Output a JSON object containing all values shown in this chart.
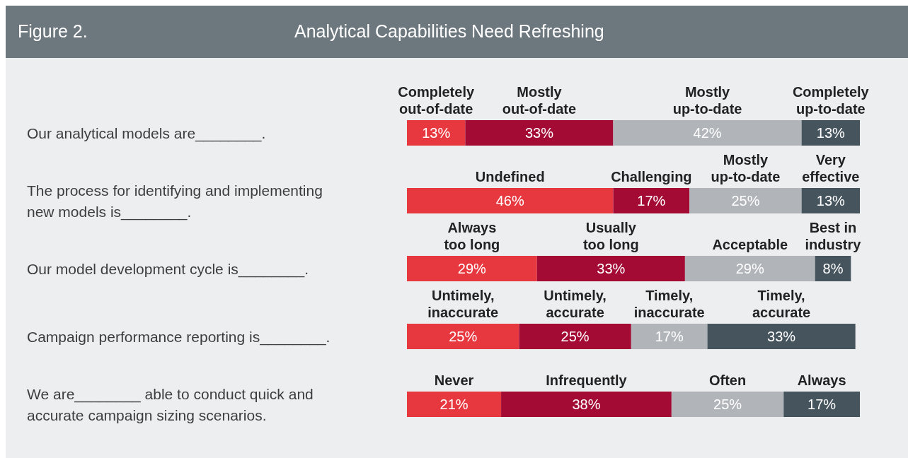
{
  "chart_data": {
    "type": "bar",
    "orientation": "horizontal",
    "stacked": true,
    "title": "Analytical Capabilities Need Refreshing",
    "subtitle": "Figure 2.",
    "categories": [
      "Our analytical models are________.",
      "The process for identifying and implementing new models is________.",
      "Our model development cycle is________.",
      "Campaign performance reporting is________.",
      "We are________ able to conduct quick and accurate campaign sizing scenarios."
    ],
    "series": [
      {
        "color": "#e8383f",
        "values": [
          13,
          46,
          29,
          25,
          21
        ],
        "value_labels": [
          "13%",
          "46%",
          "29%",
          "25%",
          "21%"
        ]
      },
      {
        "color": "#a30b35",
        "values": [
          33,
          17,
          33,
          25,
          38
        ],
        "value_labels": [
          "33%",
          "17%",
          "33%",
          "25%",
          "38%"
        ]
      },
      {
        "color": "#b1b5b9",
        "values": [
          42,
          25,
          29,
          17,
          25
        ],
        "value_labels": [
          "42%",
          "25%",
          "29%",
          "17%",
          "25%"
        ]
      },
      {
        "color": "#46545e",
        "values": [
          13,
          13,
          8,
          33,
          17
        ],
        "value_labels": [
          "13%",
          "13%",
          "8%",
          "33%",
          "17%"
        ]
      }
    ],
    "annotations": [
      "Completely\nout-of-date",
      "Mostly\nout-of-date",
      "Mostly\nup-to-date",
      "Completely\nup-to-date",
      "Undefined",
      "Challenging",
      "Mostly\nup-to-date",
      "Very\neffective",
      "Always\ntoo long",
      "Usually\ntoo long",
      "Acceptable",
      "Best in\nindustry",
      "Untimely,\ninaccurate",
      "Untimely,\naccurate",
      "Timely,\ninaccurate",
      "Timely,\naccurate",
      "Never",
      "Infrequently",
      "Often",
      "Always"
    ]
  }
}
